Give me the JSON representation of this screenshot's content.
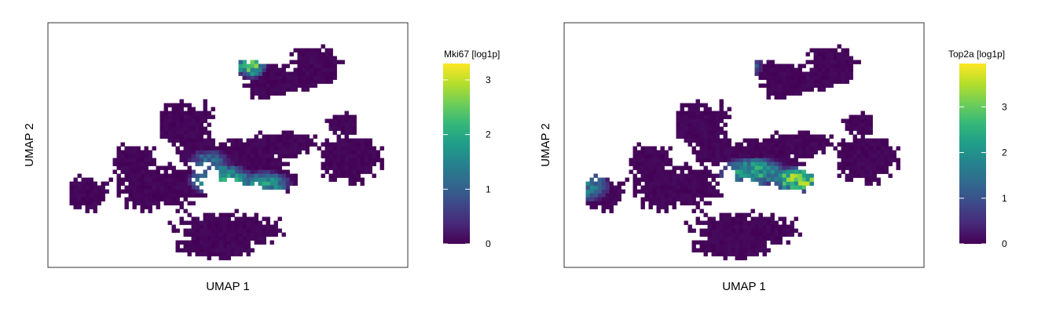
{
  "chart_data": [
    {
      "type": "heatmap",
      "feature": "Mki67",
      "xlabel": "UMAP 1",
      "ylabel": "UMAP 2",
      "legend_title": "Mki67 [log1p]",
      "legend_position": "right",
      "color_scale": "viridis",
      "value_range": [
        0,
        3.3
      ],
      "colorbar_ticks": [
        0,
        1,
        2,
        3
      ],
      "colorbar_tick_labels": [
        "0",
        "1",
        "2",
        "3"
      ],
      "grid": false,
      "axis_ticks": false
    },
    {
      "type": "heatmap",
      "feature": "Top2a",
      "xlabel": "UMAP 1",
      "ylabel": "UMAP 2",
      "legend_title": "Top2a [log1p]",
      "legend_position": "right",
      "color_scale": "viridis",
      "value_range": [
        0,
        3.95
      ],
      "colorbar_ticks": [
        0,
        1,
        2,
        3
      ],
      "colorbar_tick_labels": [
        "0",
        "1",
        "2",
        "3"
      ],
      "grid": false,
      "axis_ticks": false
    }
  ],
  "colors": {
    "viridis": [
      "#440154",
      "#482878",
      "#3e4989",
      "#31688e",
      "#26828e",
      "#1f9e89",
      "#35b779",
      "#6ece58",
      "#b5de2b",
      "#fde725"
    ],
    "frame": "#333333",
    "text": "#000000"
  }
}
